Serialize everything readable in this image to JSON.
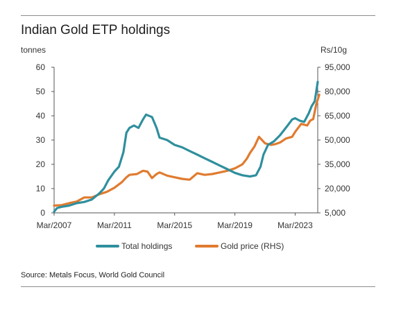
{
  "chart_data": {
    "type": "line",
    "title": "Indian Gold ETP holdings",
    "left_unit": "tonnes",
    "right_unit": "Rs/10g",
    "source": "Source: Metals Focus, World Gold Council",
    "x_ticks": [
      "Mar/2007",
      "Mar/2011",
      "Mar/2015",
      "Mar/2019",
      "Mar/2023"
    ],
    "xlim": [
      2007.0,
      2024.5
    ],
    "y_left": {
      "lim": [
        0,
        60
      ],
      "ticks": [
        "0",
        "10",
        "20",
        "30",
        "40",
        "50",
        "60"
      ]
    },
    "y_right": {
      "lim": [
        5000,
        95000
      ],
      "ticks": [
        "5,000",
        "20,000",
        "35,000",
        "50,000",
        "65,000",
        "80,000",
        "95,000"
      ]
    },
    "legend_position": "bottom",
    "series": [
      {
        "name": "Total holdings",
        "axis": "left",
        "color": "#2f8f9d",
        "points": [
          [
            2007.0,
            0.5
          ],
          [
            2007.2,
            2.0
          ],
          [
            2007.5,
            2.5
          ],
          [
            2008.0,
            3.0
          ],
          [
            2008.5,
            4.0
          ],
          [
            2009.0,
            4.5
          ],
          [
            2009.5,
            5.5
          ],
          [
            2010.0,
            8.0
          ],
          [
            2010.3,
            10.0
          ],
          [
            2010.6,
            13.5
          ],
          [
            2011.0,
            17.0
          ],
          [
            2011.3,
            19.0
          ],
          [
            2011.6,
            25.0
          ],
          [
            2011.8,
            33.0
          ],
          [
            2012.0,
            35.0
          ],
          [
            2012.3,
            36.0
          ],
          [
            2012.6,
            35.0
          ],
          [
            2012.9,
            38.5
          ],
          [
            2013.1,
            40.5
          ],
          [
            2013.5,
            39.5
          ],
          [
            2013.8,
            35.0
          ],
          [
            2014.0,
            31.0
          ],
          [
            2014.5,
            30.0
          ],
          [
            2015.0,
            28.0
          ],
          [
            2015.5,
            27.0
          ],
          [
            2016.0,
            25.5
          ],
          [
            2016.5,
            24.0
          ],
          [
            2017.0,
            22.5
          ],
          [
            2017.5,
            21.0
          ],
          [
            2018.0,
            19.5
          ],
          [
            2018.5,
            18.0
          ],
          [
            2019.0,
            16.5
          ],
          [
            2019.5,
            15.5
          ],
          [
            2020.0,
            15.0
          ],
          [
            2020.4,
            15.5
          ],
          [
            2020.7,
            19.0
          ],
          [
            2020.9,
            24.0
          ],
          [
            2021.2,
            28.0
          ],
          [
            2021.6,
            29.5
          ],
          [
            2022.0,
            32.0
          ],
          [
            2022.5,
            36.0
          ],
          [
            2022.8,
            38.5
          ],
          [
            2023.0,
            39.0
          ],
          [
            2023.3,
            38.0
          ],
          [
            2023.6,
            37.5
          ],
          [
            2023.9,
            41.0
          ],
          [
            2024.1,
            44.0
          ],
          [
            2024.3,
            46.0
          ],
          [
            2024.5,
            54.0
          ]
        ]
      },
      {
        "name": "Gold price (RHS)",
        "axis": "right",
        "color": "#e07b2f",
        "points": [
          [
            2007.0,
            9500
          ],
          [
            2007.5,
            9800
          ],
          [
            2008.0,
            11000
          ],
          [
            2008.5,
            12000
          ],
          [
            2009.0,
            14500
          ],
          [
            2009.5,
            14500
          ],
          [
            2010.0,
            16500
          ],
          [
            2010.5,
            18000
          ],
          [
            2011.0,
            20500
          ],
          [
            2011.5,
            24000
          ],
          [
            2011.8,
            27000
          ],
          [
            2012.0,
            28500
          ],
          [
            2012.5,
            29000
          ],
          [
            2012.9,
            31000
          ],
          [
            2013.2,
            30500
          ],
          [
            2013.5,
            26500
          ],
          [
            2013.8,
            29000
          ],
          [
            2014.0,
            30000
          ],
          [
            2014.5,
            28000
          ],
          [
            2015.0,
            27000
          ],
          [
            2015.5,
            26000
          ],
          [
            2016.0,
            25500
          ],
          [
            2016.5,
            29500
          ],
          [
            2017.0,
            28500
          ],
          [
            2017.5,
            29000
          ],
          [
            2018.0,
            30000
          ],
          [
            2018.5,
            31000
          ],
          [
            2019.0,
            32500
          ],
          [
            2019.5,
            35000
          ],
          [
            2019.8,
            38500
          ],
          [
            2020.0,
            42000
          ],
          [
            2020.3,
            46000
          ],
          [
            2020.6,
            52000
          ],
          [
            2020.8,
            50000
          ],
          [
            2021.0,
            48000
          ],
          [
            2021.4,
            47000
          ],
          [
            2021.7,
            47500
          ],
          [
            2022.0,
            48500
          ],
          [
            2022.4,
            51000
          ],
          [
            2022.8,
            52000
          ],
          [
            2023.0,
            55000
          ],
          [
            2023.4,
            60000
          ],
          [
            2023.8,
            59000
          ],
          [
            2024.0,
            62000
          ],
          [
            2024.2,
            63000
          ],
          [
            2024.4,
            72000
          ],
          [
            2024.6,
            78000
          ]
        ]
      }
    ]
  }
}
